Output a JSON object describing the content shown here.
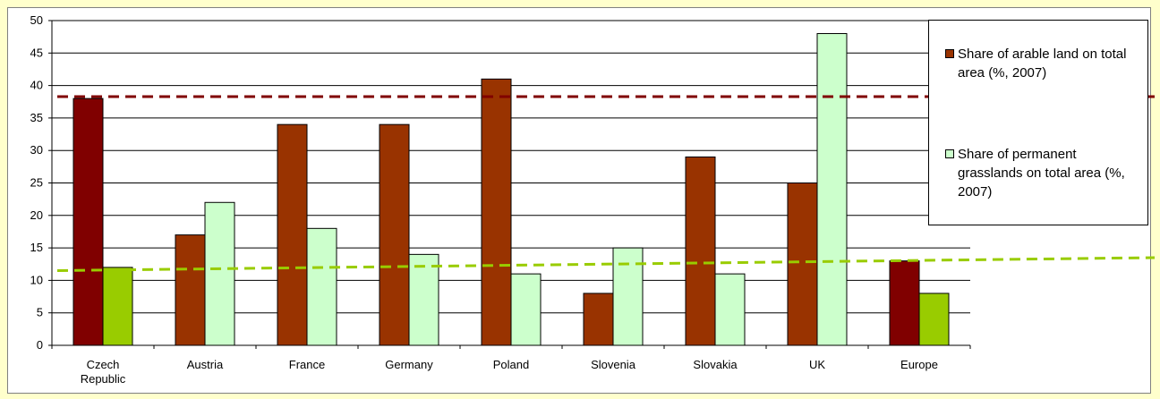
{
  "colors": {
    "background": "#ffffcc",
    "arable": "#993300",
    "arable_highlight": "#800000",
    "grassland": "#ccffcc",
    "grassland_highlight": "#99cc00",
    "arable_trend": "#800000",
    "grassland_trend": "#99cc00",
    "grid": "#000000"
  },
  "chart_data": {
    "type": "bar",
    "categories": [
      "Czech\nRepublic",
      "Austria",
      "France",
      "Germany",
      "Poland",
      "Slovenia",
      "Slovakia",
      "UK",
      "Europe"
    ],
    "series": [
      {
        "name": "Share of arable land on total area (%, 2007)",
        "values": [
          38,
          17,
          34,
          34,
          41,
          8,
          29,
          25,
          13
        ],
        "highlighted": [
          true,
          false,
          false,
          false,
          false,
          false,
          false,
          false,
          true
        ]
      },
      {
        "name": "Share of permanent grasslands on total area (%, 2007)",
        "values": [
          12,
          22,
          18,
          14,
          11,
          15,
          11,
          48,
          8
        ],
        "highlighted": [
          true,
          false,
          false,
          false,
          false,
          false,
          false,
          false,
          true
        ]
      }
    ],
    "reference_lines": [
      {
        "style": "dashed",
        "color": "#800000",
        "y_start": 38.3,
        "y_end": 38.3
      },
      {
        "style": "dashed",
        "color": "#99cc00",
        "y_start": 11.5,
        "y_end": 13.5
      }
    ],
    "ylim": [
      0,
      50
    ],
    "yticks": [
      0,
      5,
      10,
      15,
      20,
      25,
      30,
      35,
      40,
      45,
      50
    ],
    "grid": true,
    "legend_position": "right"
  }
}
